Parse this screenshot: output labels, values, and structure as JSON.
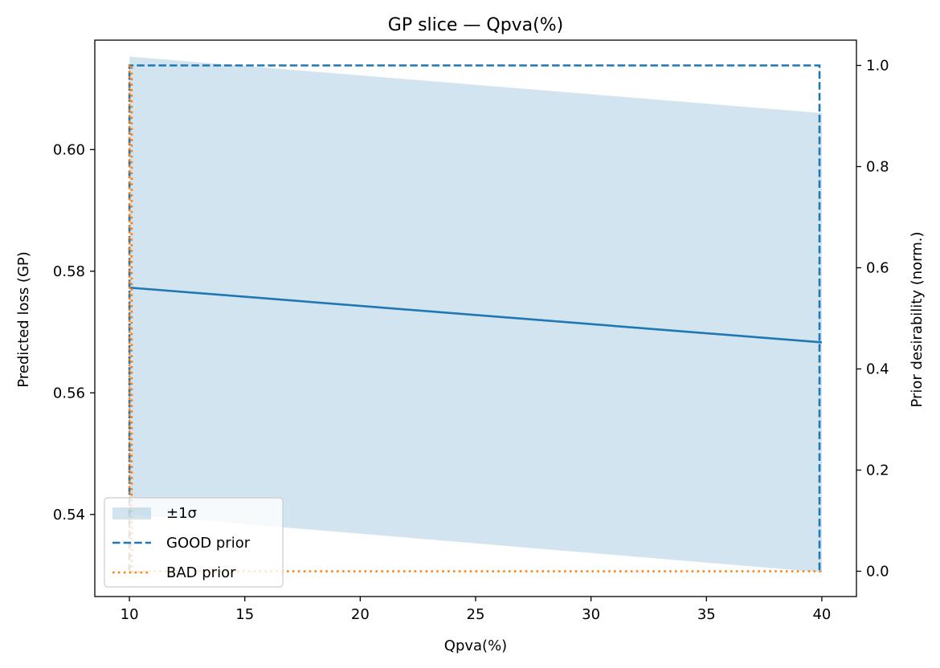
{
  "chart_data": {
    "type": "line",
    "title": "GP slice — Qpva(%)",
    "xlabel": "Qpva(%)",
    "ylabel": "Predicted loss (GP)",
    "y2label": "Prior desirability (norm.)",
    "xlim": [
      8.5,
      41.5
    ],
    "ylim": [
      0.5265,
      0.618
    ],
    "y2lim": [
      -0.05,
      1.05
    ],
    "xticks": [
      10,
      15,
      20,
      25,
      30,
      35,
      40
    ],
    "yticks": [
      0.54,
      0.56,
      0.58,
      0.6
    ],
    "y2ticks": [
      0.0,
      0.2,
      0.4,
      0.6,
      0.8,
      1.0
    ],
    "xtick_labels": [
      "10",
      "15",
      "20",
      "25",
      "30",
      "35",
      "40"
    ],
    "ytick_labels": [
      "0.54",
      "0.56",
      "0.58",
      "0.60"
    ],
    "y2tick_labels": [
      "0.0",
      "0.2",
      "0.4",
      "0.6",
      "0.8",
      "1.0"
    ],
    "grid": false,
    "legend_position": "lower-left",
    "series": [
      {
        "kind": "mean",
        "axis": "left",
        "color": "#1f77b4",
        "x": [
          10,
          40
        ],
        "y": [
          0.5773,
          0.5683
        ]
      },
      {
        "kind": "band",
        "name": "±1σ",
        "axis": "left",
        "color": "#1f77b4",
        "opacity": 0.2,
        "x": [
          10,
          40
        ],
        "y_upper": [
          0.6153,
          0.606
        ],
        "y_lower": [
          0.54,
          0.5305
        ]
      },
      {
        "kind": "step",
        "name": "GOOD prior",
        "axis": "right",
        "color": "#1f77b4",
        "dash": "dashed",
        "x": [
          10,
          10,
          39.9,
          39.9,
          40
        ],
        "y": [
          0.0,
          1.0,
          1.0,
          0.0,
          0.0
        ]
      },
      {
        "kind": "step",
        "name": "BAD prior",
        "axis": "right",
        "color": "#ff7f0e",
        "dash": "dotted",
        "x": [
          10,
          10,
          10.1,
          10.1,
          40
        ],
        "y": [
          0.0,
          1.0,
          1.0,
          0.0,
          0.0
        ]
      }
    ]
  }
}
